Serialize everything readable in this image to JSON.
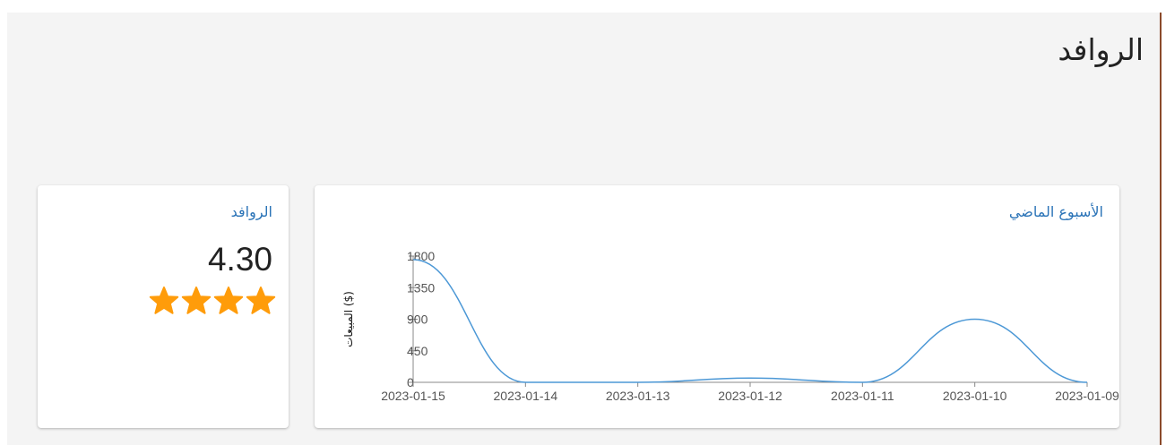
{
  "page": {
    "title": "الروافد"
  },
  "colors": {
    "background": "#f4f4f4",
    "card": "#ffffff",
    "title_link": "#2a73b7",
    "line": "#4c98d6",
    "star": "#ff9c0a"
  },
  "rating_card": {
    "title": "الروافد",
    "value": "4.30",
    "stars_filled": 4,
    "star_icon": "star-icon"
  },
  "sales_card": {
    "title": "الأسبوع الماضي"
  },
  "chart_data": {
    "type": "line",
    "title": "",
    "xlabel": "",
    "ylabel": "المبيعات ($)",
    "categories": [
      "2023-01-15",
      "2023-01-14",
      "2023-01-13",
      "2023-01-12",
      "2023-01-11",
      "2023-01-10",
      "2023-01-09"
    ],
    "yticks": [
      "0",
      "450",
      "900",
      "1350",
      "1800"
    ],
    "ylim": [
      0,
      1800
    ],
    "series": [
      {
        "values": [
          1750,
          0,
          0,
          60,
          0,
          900,
          0
        ]
      }
    ],
    "grid": false,
    "legend": "none"
  }
}
